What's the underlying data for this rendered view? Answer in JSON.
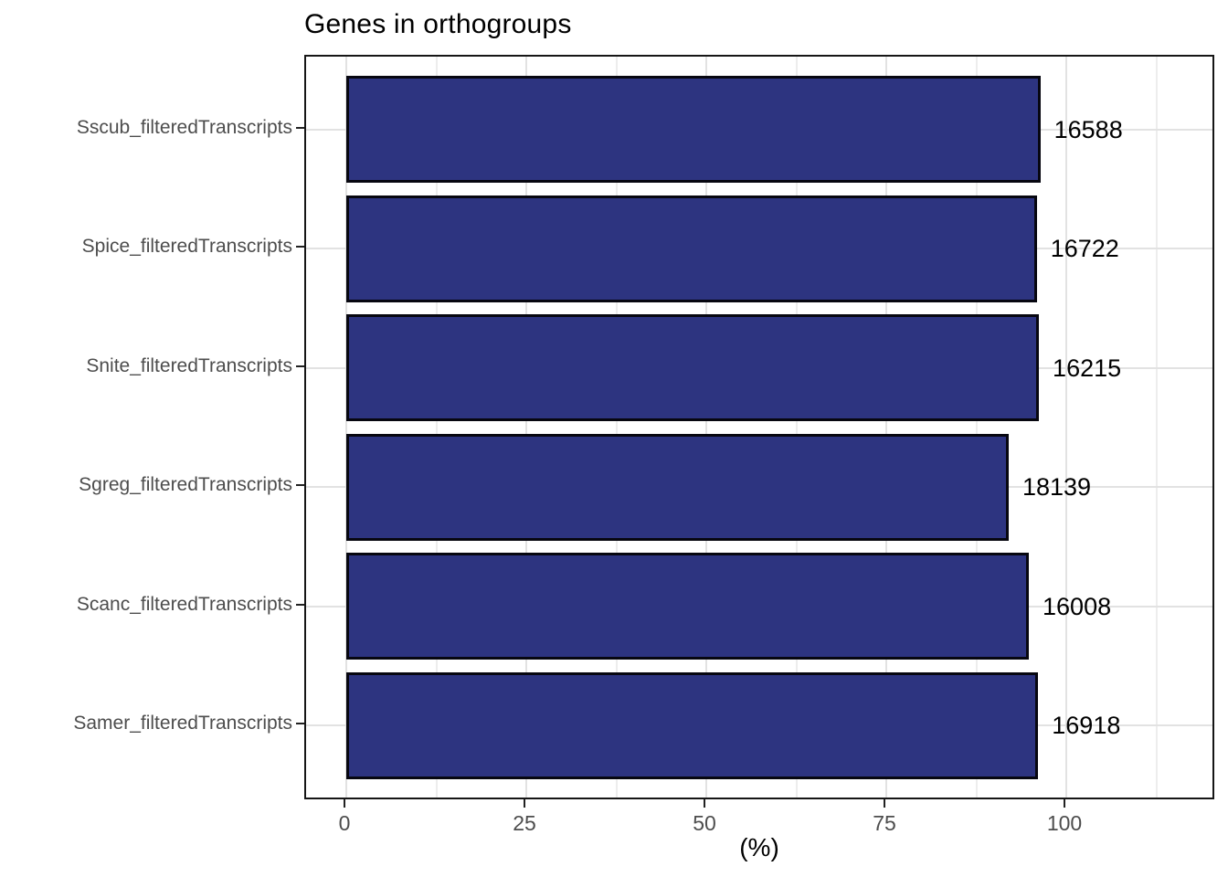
{
  "chart_data": {
    "type": "bar",
    "orientation": "horizontal",
    "title": "Genes in orthogroups",
    "xlabel": "(%)",
    "ylabel": "",
    "categories": [
      "Sscub_filteredTranscripts",
      "Spice_filteredTranscripts",
      "Snite_filteredTranscripts",
      "Sgreg_filteredTranscripts",
      "Scanc_filteredTranscripts",
      "Samer_filteredTranscripts"
    ],
    "values_pct": [
      96.4,
      95.9,
      96.2,
      92.0,
      94.8,
      96.1
    ],
    "bar_labels": [
      "16588",
      "16722",
      "16215",
      "18139",
      "16008",
      "16918"
    ],
    "x_ticks": [
      0,
      25,
      50,
      75,
      100
    ],
    "x_tick_labels": [
      "0",
      "25",
      "50",
      "75",
      "100"
    ],
    "x_minor_gridlines": [
      12.5,
      37.5,
      62.5,
      87.5,
      112.5
    ],
    "xlim": [
      -5.6,
      120.8
    ],
    "grid": true,
    "legend": false,
    "colors": {
      "bar_fill": "#2d3480",
      "bar_stroke": "#070710",
      "grid_major": "#e2e2e2",
      "grid_minor": "#ededed",
      "panel_border": "#161616",
      "axis_text": "#4d4d4d",
      "title_text": "#000000"
    }
  }
}
